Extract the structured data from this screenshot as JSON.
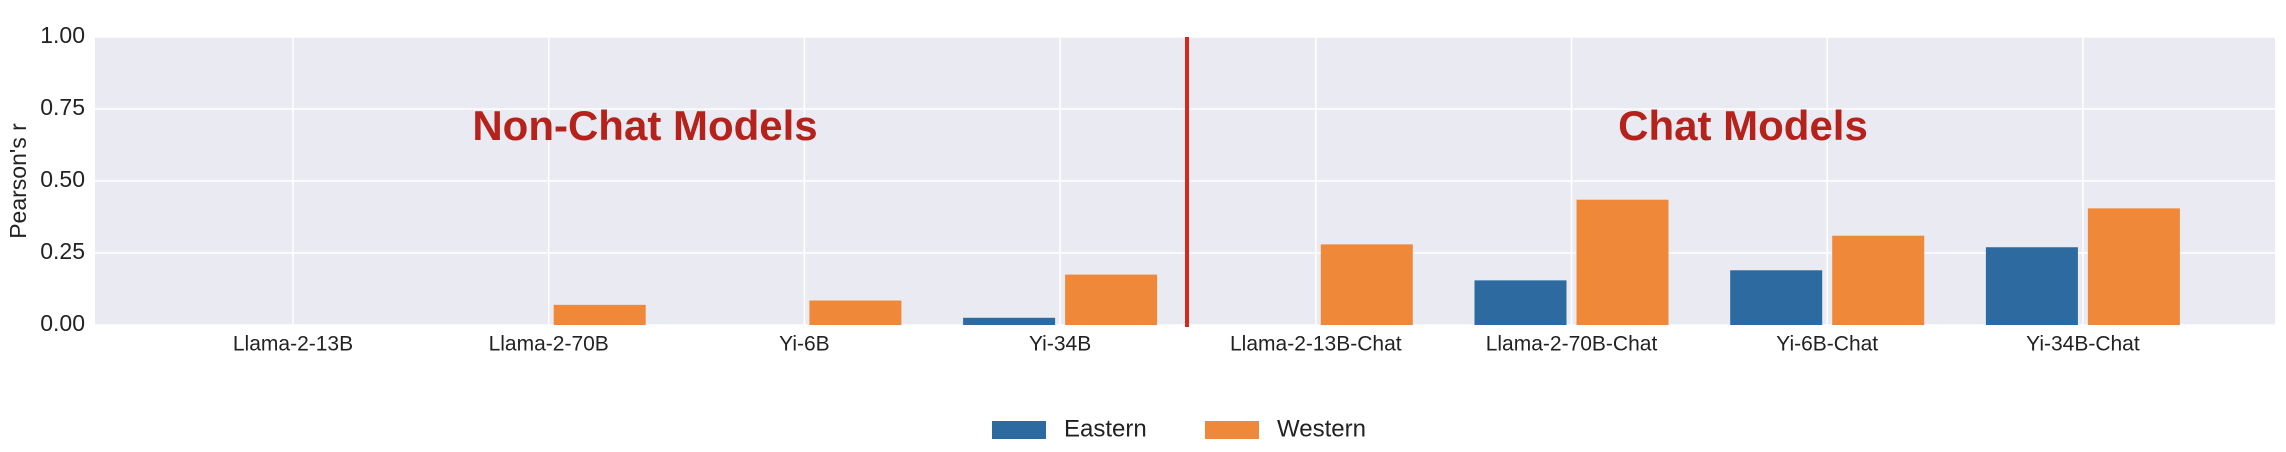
{
  "chart_data": {
    "type": "bar",
    "ylabel": "Pearson's r",
    "categories": [
      "Llama-2-13B",
      "Llama-2-70B",
      "Yi-6B",
      "Yi-34B",
      "Llama-2-13B-Chat",
      "Llama-2-70B-Chat",
      "Yi-6B-Chat",
      "Yi-34B-Chat"
    ],
    "series": [
      {
        "name": "Eastern",
        "color": "#2c6aa0",
        "values": [
          0,
          0,
          0,
          0.025,
          0,
          0.155,
          0.19,
          0.27
        ]
      },
      {
        "name": "Western",
        "color": "#f0883a",
        "values": [
          0,
          0.07,
          0.085,
          0.175,
          0.28,
          0.435,
          0.31,
          0.405
        ]
      }
    ],
    "ylim": [
      0,
      1
    ],
    "yticks": [
      {
        "value": 0,
        "label": "0.00"
      },
      {
        "value": 0.25,
        "label": "0.25"
      },
      {
        "value": 0.5,
        "label": "0.50"
      },
      {
        "value": 0.75,
        "label": "0.75"
      },
      {
        "value": 1,
        "label": "1.00"
      }
    ],
    "grid": true,
    "annotations": [
      "Non-Chat Models",
      "Chat Models"
    ],
    "legend": "bottom"
  }
}
